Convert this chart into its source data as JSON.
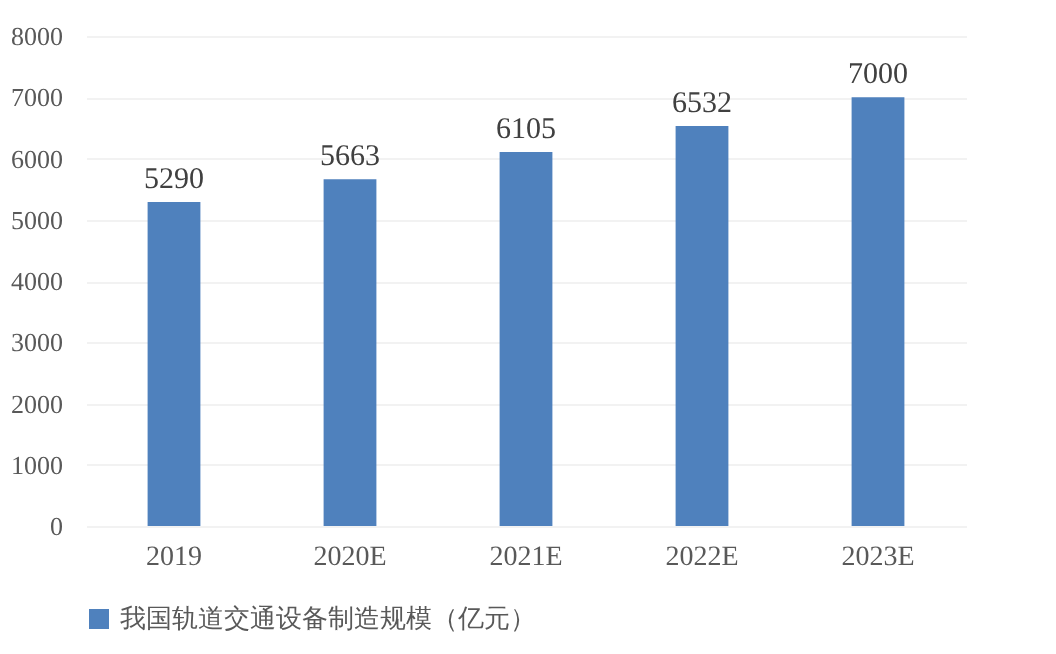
{
  "chart_data": {
    "type": "bar",
    "categories": [
      "2019",
      "2020E",
      "2021E",
      "2022E",
      "2023E"
    ],
    "series": [
      {
        "name": "我国轨道交通设备制造规模（亿元）",
        "color": "#4f81bd",
        "values": [
          5290,
          5663,
          6105,
          6532,
          7000
        ]
      }
    ],
    "ylim": [
      0,
      8000
    ],
    "yticks": [
      0,
      1000,
      2000,
      3000,
      4000,
      5000,
      6000,
      7000,
      8000
    ],
    "data_labels": true,
    "grid": "y",
    "legend": "bottom"
  }
}
